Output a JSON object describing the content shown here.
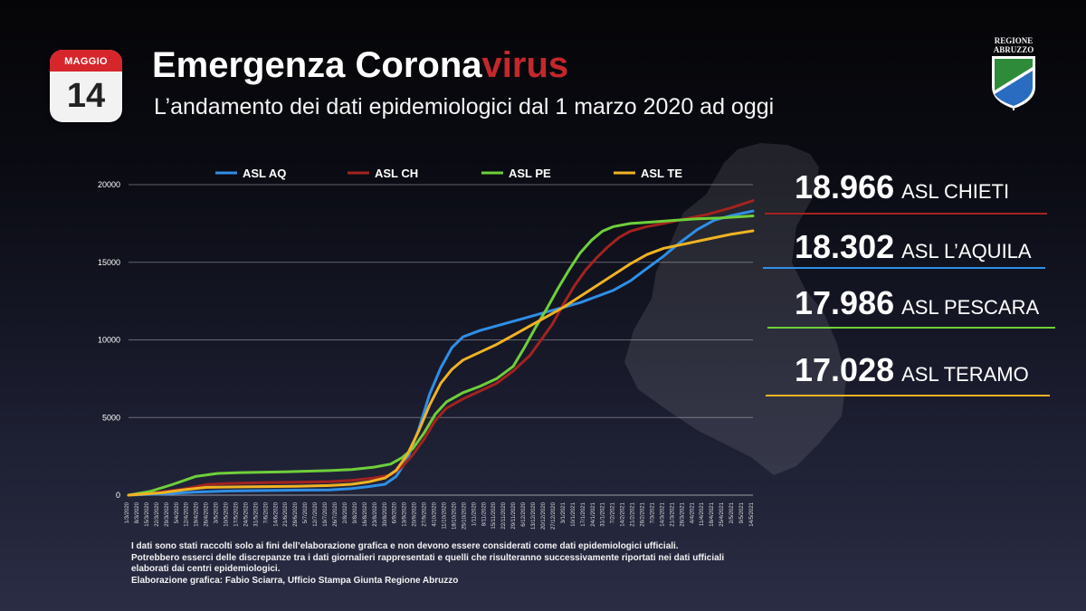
{
  "calendar": {
    "month": "MAGGIO",
    "day": "14"
  },
  "header": {
    "title_main": "Emergenza Corona",
    "title_accent": "virus",
    "subtitle": "L’andamento dei dati epidemiologici dal 1 marzo 2020 ad oggi"
  },
  "logo": {
    "line1": "REGIONE",
    "line2": "ABRUZZO"
  },
  "colors": {
    "aq": "#2f8fe6",
    "ch": "#a3231f",
    "pe": "#6fcf3a",
    "te": "#f0b323",
    "accent": "#c4272c"
  },
  "stats": [
    {
      "value": "18.966",
      "name": "ASL CHIETI",
      "color": "#a3231f"
    },
    {
      "value": "18.302",
      "name": "ASL L’AQUILA",
      "color": "#2f8fe6"
    },
    {
      "value": "17.986",
      "name": "ASL PESCARA",
      "color": "#6fcf3a"
    },
    {
      "value": "17.028",
      "name": "ASL TERAMO",
      "color": "#f0b323"
    }
  ],
  "notes": [
    "I dati sono stati raccolti solo ai fini dell’elaborazione grafica e non devono essere considerati come dati epidemiologici ufficiali.",
    "Potrebbero esserci delle discrepanze tra i dati giornalieri rappresentati e quelli che risulteranno successivamente riportati nei dati ufficiali",
    "elaborati dai centri epidemiologici.",
    "Elaborazione grafica: Fabio Sciarra, Ufficio Stampa Giunta Regione Abruzzo"
  ],
  "chart_data": {
    "type": "line",
    "ylim": [
      0,
      20000
    ],
    "yticks": [
      0,
      5000,
      10000,
      15000,
      20000
    ],
    "x_labels": [
      "1/3/2020",
      "8/3/2020",
      "15/3/2020",
      "22/3/2020",
      "29/3/2020",
      "5/4/2020",
      "12/4/2020",
      "19/4/2020",
      "26/4/2020",
      "3/5/2020",
      "10/5/2020",
      "17/5/2020",
      "24/5/2020",
      "31/5/2020",
      "7/6/2020",
      "14/6/2020",
      "21/6/2020",
      "28/6/2020",
      "5/7/2020",
      "12/7/2020",
      "19/7/2020",
      "26/7/2020",
      "2/8/2020",
      "9/8/2020",
      "16/8/2020",
      "23/8/2020",
      "30/8/2020",
      "6/9/2020",
      "13/9/2020",
      "20/9/2020",
      "27/9/2020",
      "4/10/2020",
      "11/10/2020",
      "18/10/2020",
      "25/10/2020",
      "1/11/2020",
      "8/11/2020",
      "15/11/2020",
      "22/11/2020",
      "29/11/2020",
      "6/12/2020",
      "13/12/2020",
      "20/12/2020",
      "27/12/2020",
      "3/1/2021",
      "10/1/2021",
      "17/1/2021",
      "24/1/2021",
      "31/1/2021",
      "7/2/2021",
      "14/2/2021",
      "21/2/2021",
      "28/2/2021",
      "7/3/2021",
      "14/3/2021",
      "21/3/2021",
      "28/3/2021",
      "4/4/2021",
      "11/4/2021",
      "18/4/2021",
      "25/4/2021",
      "2/5/2021",
      "9/5/2021",
      "14/5/2021"
    ],
    "grid": true,
    "legend_position": "top",
    "series": [
      {
        "name": "ASL AQ",
        "color": "#2f8fe6",
        "points": [
          [
            0,
            0
          ],
          [
            6,
            80
          ],
          [
            12,
            200
          ],
          [
            18,
            270
          ],
          [
            25,
            300
          ],
          [
            30,
            320
          ],
          [
            36,
            340
          ],
          [
            40,
            420
          ],
          [
            43,
            550
          ],
          [
            46,
            700
          ],
          [
            48,
            1200
          ],
          [
            50,
            2300
          ],
          [
            52,
            4200
          ],
          [
            54,
            6500
          ],
          [
            56,
            8200
          ],
          [
            58,
            9500
          ],
          [
            60,
            10200
          ],
          [
            63,
            10600
          ],
          [
            66,
            10900
          ],
          [
            69,
            11200
          ],
          [
            72,
            11500
          ],
          [
            75,
            11800
          ],
          [
            78,
            12100
          ],
          [
            81,
            12400
          ],
          [
            84,
            12800
          ],
          [
            87,
            13200
          ],
          [
            90,
            13800
          ],
          [
            93,
            14600
          ],
          [
            96,
            15400
          ],
          [
            99,
            16300
          ],
          [
            102,
            17100
          ],
          [
            105,
            17700
          ],
          [
            108,
            18000
          ],
          [
            110,
            18150
          ],
          [
            112,
            18302
          ]
        ]
      },
      {
        "name": "ASL CH",
        "color": "#a3231f",
        "points": [
          [
            0,
            0
          ],
          [
            5,
            150
          ],
          [
            10,
            400
          ],
          [
            14,
            680
          ],
          [
            18,
            750
          ],
          [
            24,
            800
          ],
          [
            30,
            830
          ],
          [
            36,
            870
          ],
          [
            40,
            950
          ],
          [
            44,
            1100
          ],
          [
            47,
            1300
          ],
          [
            49,
            1800
          ],
          [
            51,
            2600
          ],
          [
            53,
            3600
          ],
          [
            55,
            4800
          ],
          [
            57,
            5600
          ],
          [
            60,
            6200
          ],
          [
            63,
            6700
          ],
          [
            66,
            7200
          ],
          [
            69,
            8000
          ],
          [
            72,
            9000
          ],
          [
            74,
            10000
          ],
          [
            76,
            11000
          ],
          [
            78,
            12300
          ],
          [
            80,
            13500
          ],
          [
            82,
            14500
          ],
          [
            84,
            15300
          ],
          [
            86,
            16000
          ],
          [
            88,
            16600
          ],
          [
            90,
            17000
          ],
          [
            93,
            17300
          ],
          [
            96,
            17500
          ],
          [
            100,
            17800
          ],
          [
            104,
            18100
          ],
          [
            108,
            18500
          ],
          [
            112,
            18966
          ]
        ]
      },
      {
        "name": "ASL PE",
        "color": "#6fcf3a",
        "points": [
          [
            0,
            0
          ],
          [
            4,
            250
          ],
          [
            8,
            700
          ],
          [
            12,
            1200
          ],
          [
            16,
            1400
          ],
          [
            20,
            1450
          ],
          [
            28,
            1500
          ],
          [
            36,
            1580
          ],
          [
            40,
            1650
          ],
          [
            44,
            1800
          ],
          [
            47,
            2000
          ],
          [
            49,
            2400
          ],
          [
            51,
            3000
          ],
          [
            53,
            4000
          ],
          [
            55,
            5200
          ],
          [
            57,
            6000
          ],
          [
            60,
            6600
          ],
          [
            63,
            7000
          ],
          [
            66,
            7500
          ],
          [
            69,
            8300
          ],
          [
            71,
            9500
          ],
          [
            73,
            10800
          ],
          [
            75,
            12000
          ],
          [
            77,
            13300
          ],
          [
            79,
            14500
          ],
          [
            81,
            15600
          ],
          [
            83,
            16400
          ],
          [
            85,
            17000
          ],
          [
            87,
            17300
          ],
          [
            90,
            17500
          ],
          [
            94,
            17600
          ],
          [
            98,
            17700
          ],
          [
            102,
            17800
          ],
          [
            106,
            17850
          ],
          [
            112,
            17986
          ]
        ]
      },
      {
        "name": "ASL TE",
        "color": "#f0b323",
        "points": [
          [
            0,
            0
          ],
          [
            6,
            150
          ],
          [
            10,
            350
          ],
          [
            14,
            500
          ],
          [
            20,
            530
          ],
          [
            30,
            570
          ],
          [
            36,
            620
          ],
          [
            40,
            700
          ],
          [
            43,
            850
          ],
          [
            46,
            1100
          ],
          [
            48,
            1600
          ],
          [
            50,
            2600
          ],
          [
            52,
            4100
          ],
          [
            54,
            5800
          ],
          [
            56,
            7200
          ],
          [
            58,
            8100
          ],
          [
            60,
            8700
          ],
          [
            63,
            9200
          ],
          [
            66,
            9700
          ],
          [
            69,
            10300
          ],
          [
            72,
            10900
          ],
          [
            75,
            11500
          ],
          [
            78,
            12100
          ],
          [
            81,
            12800
          ],
          [
            84,
            13500
          ],
          [
            87,
            14200
          ],
          [
            90,
            14900
          ],
          [
            93,
            15500
          ],
          [
            96,
            15900
          ],
          [
            100,
            16200
          ],
          [
            104,
            16500
          ],
          [
            108,
            16800
          ],
          [
            112,
            17028
          ]
        ]
      }
    ]
  }
}
